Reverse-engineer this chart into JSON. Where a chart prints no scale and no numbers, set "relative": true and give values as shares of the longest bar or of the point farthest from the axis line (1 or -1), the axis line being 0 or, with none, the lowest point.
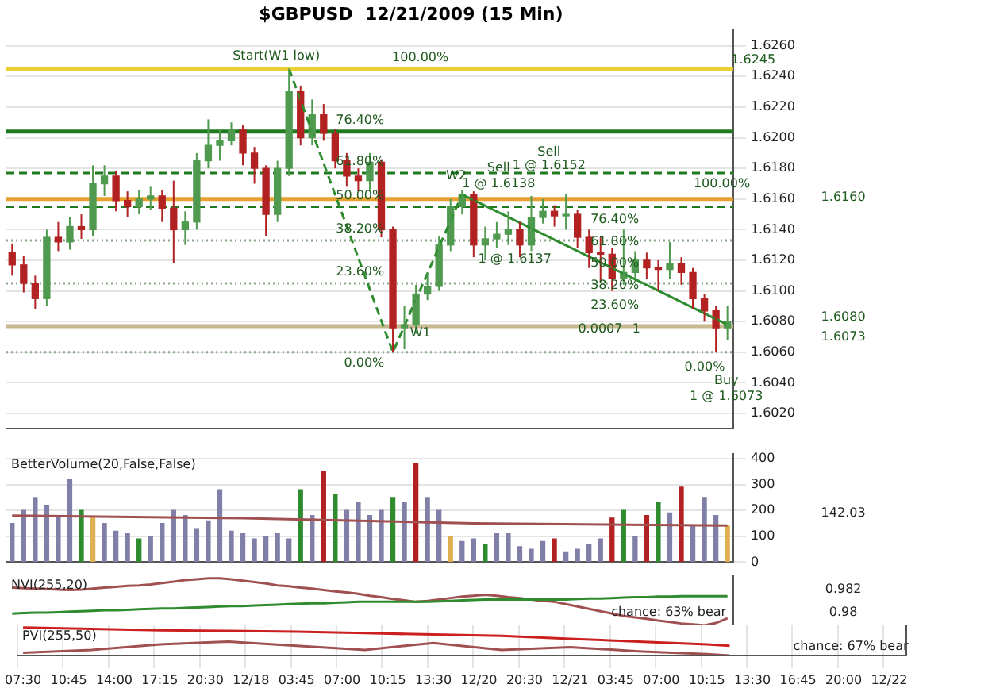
{
  "chart_data": [
    {
      "type": "candlestick",
      "title": "$GBPUSD  12/21/2009 (15 Min)",
      "categories": [
        null,
        null,
        null,
        null,
        null,
        null,
        null,
        null,
        null,
        null,
        null,
        null,
        null,
        null,
        null,
        null,
        null,
        null,
        null,
        null,
        null,
        null,
        null,
        null,
        null,
        null,
        null,
        null,
        null,
        null,
        null,
        null,
        null,
        null,
        null,
        null,
        null,
        null,
        null,
        null,
        null,
        null,
        null,
        null,
        null,
        null,
        null,
        null,
        null,
        null,
        null,
        null,
        null,
        null,
        null,
        null,
        null,
        null,
        null,
        null,
        null,
        null,
        null
      ],
      "ohlc": [
        [
          1.6125,
          1.6131,
          1.611,
          1.6117
        ],
        [
          1.6117,
          1.6123,
          1.6099,
          1.6105
        ],
        [
          1.6105,
          1.611,
          1.6088,
          1.6095
        ],
        [
          1.6095,
          1.614,
          1.609,
          1.6135
        ],
        [
          1.6135,
          1.6145,
          1.6126,
          1.6132
        ],
        [
          1.6132,
          1.6148,
          1.6127,
          1.6142
        ],
        [
          1.6142,
          1.615,
          1.6134,
          1.614
        ],
        [
          1.614,
          1.6182,
          1.6136,
          1.617
        ],
        [
          1.617,
          1.6182,
          1.6162,
          1.6175
        ],
        [
          1.6175,
          1.6178,
          1.6152,
          1.6159
        ],
        [
          1.6159,
          1.6165,
          1.6148,
          1.6155
        ],
        [
          1.6155,
          1.6166,
          1.615,
          1.616
        ],
        [
          1.616,
          1.6168,
          1.6153,
          1.6162
        ],
        [
          1.6162,
          1.6166,
          1.6145,
          1.6154
        ],
        [
          1.6154,
          1.6172,
          1.6118,
          1.614
        ],
        [
          1.614,
          1.6152,
          1.613,
          1.6145
        ],
        [
          1.6145,
          1.619,
          1.614,
          1.6185
        ],
        [
          1.6185,
          1.6212,
          1.618,
          1.6195
        ],
        [
          1.6195,
          1.6205,
          1.6185,
          1.6198
        ],
        [
          1.6198,
          1.621,
          1.6195,
          1.6205
        ],
        [
          1.6205,
          1.6208,
          1.6182,
          1.619
        ],
        [
          1.619,
          1.6194,
          1.617,
          1.618
        ],
        [
          1.618,
          1.6182,
          1.6136,
          1.615
        ],
        [
          1.615,
          1.6185,
          1.6145,
          1.618
        ],
        [
          1.618,
          1.6245,
          1.6175,
          1.623
        ],
        [
          1.623,
          1.6234,
          1.6195,
          1.62
        ],
        [
          1.62,
          1.6225,
          1.6195,
          1.6215
        ],
        [
          1.6215,
          1.6222,
          1.6198,
          1.6203
        ],
        [
          1.6203,
          1.6206,
          1.618,
          1.6185
        ],
        [
          1.6185,
          1.619,
          1.6168,
          1.6175
        ],
        [
          1.6175,
          1.618,
          1.6165,
          1.6172
        ],
        [
          1.6172,
          1.619,
          1.6166,
          1.6184
        ],
        [
          1.6184,
          1.6186,
          1.6135,
          1.614
        ],
        [
          1.614,
          1.6142,
          1.606,
          1.6076
        ],
        [
          1.6076,
          1.609,
          1.6062,
          1.6078
        ],
        [
          1.6078,
          1.6104,
          1.6072,
          1.6098
        ],
        [
          1.6098,
          1.6112,
          1.6094,
          1.6103
        ],
        [
          1.6103,
          1.6136,
          1.61,
          1.613
        ],
        [
          1.613,
          1.616,
          1.6126,
          1.6155
        ],
        [
          1.6155,
          1.6166,
          1.615,
          1.6163
        ],
        [
          1.6163,
          1.6165,
          1.6122,
          1.613
        ],
        [
          1.613,
          1.6142,
          1.612,
          1.6134
        ],
        [
          1.6134,
          1.6145,
          1.6128,
          1.6137
        ],
        [
          1.6137,
          1.6152,
          1.613,
          1.614
        ],
        [
          1.614,
          1.6145,
          1.6122,
          1.613
        ],
        [
          1.613,
          1.6162,
          1.6126,
          1.6148
        ],
        [
          1.6148,
          1.616,
          1.6144,
          1.6152
        ],
        [
          1.6152,
          1.6156,
          1.6142,
          1.6149
        ],
        [
          1.6149,
          1.6163,
          1.614,
          1.615
        ],
        [
          1.615,
          1.6153,
          1.6128,
          1.6135
        ],
        [
          1.6135,
          1.614,
          1.6115,
          1.6125
        ],
        [
          1.6125,
          1.6135,
          1.6106,
          1.6124
        ],
        [
          1.6124,
          1.6128,
          1.61,
          1.6108
        ],
        [
          1.6108,
          1.614,
          1.6104,
          1.6112
        ],
        [
          1.6112,
          1.6126,
          1.6108,
          1.612
        ],
        [
          1.612,
          1.6125,
          1.6108,
          1.6115
        ],
        [
          1.6115,
          1.612,
          1.61,
          1.6114
        ],
        [
          1.6114,
          1.6132,
          1.6108,
          1.6118
        ],
        [
          1.6118,
          1.6122,
          1.6104,
          1.6112
        ],
        [
          1.6112,
          1.6115,
          1.6088,
          1.6095
        ],
        [
          1.6095,
          1.6098,
          1.608,
          1.6087
        ],
        [
          1.6087,
          1.609,
          1.606,
          1.6076
        ],
        [
          1.6076,
          1.609,
          1.6068,
          1.608
        ]
      ],
      "series": [
        {
          "type": "line",
          "values": [
            null,
            null,
            null,
            null,
            null,
            null,
            null,
            null,
            null,
            null,
            null,
            null,
            null,
            null,
            null,
            null,
            null,
            null,
            null,
            null,
            null,
            null,
            null,
            null,
            null,
            null,
            null,
            null,
            null,
            null,
            null,
            null,
            null,
            null,
            null,
            null,
            null,
            null,
            null,
            1.6163,
            null,
            null,
            null,
            null,
            null,
            null,
            null,
            null,
            null,
            null,
            null,
            null,
            null,
            null,
            null,
            null,
            null,
            null,
            null,
            null,
            null,
            null,
            1.6078
          ],
          "color": "#2e8b2e",
          "line_style": "solid"
        },
        {
          "type": "line",
          "values": [
            null,
            null,
            null,
            null,
            null,
            null,
            null,
            null,
            null,
            null,
            null,
            null,
            null,
            null,
            null,
            null,
            null,
            null,
            null,
            null,
            null,
            null,
            null,
            null,
            1.6245,
            null,
            null,
            null,
            null,
            null,
            null,
            null,
            null,
            1.606,
            null,
            null,
            null,
            null,
            null,
            1.6163,
            null,
            null,
            null,
            null,
            null,
            null,
            null,
            null,
            null,
            null,
            null,
            null,
            null,
            null,
            null,
            null,
            null,
            null,
            null,
            null,
            null,
            null,
            null
          ],
          "color": "#2e8b2e",
          "line_style": "dashed"
        }
      ],
      "ylim": [
        1.601,
        1.627
      ],
      "yticks": [
        {
          "value": 1.602,
          "label": "1.6020"
        },
        {
          "value": 1.604,
          "label": "1.6040"
        },
        {
          "value": 1.606,
          "label": "1.6060"
        },
        {
          "value": 1.608,
          "label": "1.6080"
        },
        {
          "value": 1.61,
          "label": "1.6100"
        },
        {
          "value": 1.612,
          "label": "1.6120"
        },
        {
          "value": 1.614,
          "label": "1.6140"
        },
        {
          "value": 1.616,
          "label": "1.6160"
        },
        {
          "value": 1.618,
          "label": "1.6180"
        },
        {
          "value": 1.62,
          "label": "1.6200"
        },
        {
          "value": 1.622,
          "label": "1.6220"
        },
        {
          "value": 1.624,
          "label": "1.6240"
        },
        {
          "value": 1.626,
          "label": "1.6260"
        }
      ],
      "grid": "y",
      "tick_labels": "y",
      "ref_lines": [
        {
          "axis": "y",
          "value": 1.6245,
          "color": "#e8d030",
          "line_style": "solid"
        },
        {
          "axis": "y",
          "value": 1.6204,
          "color": "#1f7a1f",
          "line_style": "solid"
        },
        {
          "axis": "y",
          "value": 1.6177,
          "color": "#1f7a1f",
          "line_style": "dashed"
        },
        {
          "axis": "y",
          "value": 1.6155,
          "color": "#1f7a1f",
          "line_style": "dashed"
        },
        {
          "axis": "y",
          "value": 1.6133,
          "color": "#8aa88a",
          "line_style": "dotted"
        },
        {
          "axis": "y",
          "value": 1.6105,
          "color": "#8aa88a",
          "line_style": "dotted"
        },
        {
          "axis": "y",
          "value": 1.606,
          "color": "#8aa88a",
          "line_style": "dotted"
        },
        {
          "axis": "y",
          "value": 1.616,
          "color": "#e8a030",
          "line_style": "solid"
        },
        {
          "axis": "y",
          "value": 1.6077,
          "color": "#c8b890",
          "line_style": "solid"
        }
      ],
      "annotations": [
        {
          "text": "Start(W1 low)",
          "y": 1.6245
        },
        {
          "text": "100.00%",
          "y": 1.6245
        },
        {
          "text": "76.40%",
          "y": 1.6204
        },
        {
          "text": "61.80%",
          "y": 1.6177
        },
        {
          "text": "50.00%",
          "y": 1.6155
        },
        {
          "text": "38.20%",
          "y": 1.6133
        },
        {
          "text": "23.60%",
          "y": 1.6105
        },
        {
          "text": "0.00%",
          "y": 1.606
        },
        "W1",
        "W2",
        "Sell",
        "1 @ 1.6138",
        "Sell",
        "1 @ 1.6152",
        "1 @ 1.6137",
        "100.00%",
        "76.40%",
        "61.80%",
        "50.00%",
        "38.20%",
        "23.60%",
        "0.00%",
        "0.0007",
        "1",
        "Buy",
        "1 @ 1.6073",
        "1.6245",
        "1.6160",
        "1.6080",
        "1.6073"
      ]
    },
    {
      "type": "bar",
      "title": "BetterVolume(20,False,False)",
      "categories": [
        null,
        null,
        null,
        null,
        null,
        null,
        null,
        null,
        null,
        null,
        null,
        null,
        null,
        null,
        null,
        null,
        null,
        null,
        null,
        null,
        null,
        null,
        null,
        null,
        null,
        null,
        null,
        null,
        null,
        null,
        null,
        null,
        null,
        null,
        null,
        null,
        null,
        null,
        null,
        null,
        null,
        null,
        null,
        null,
        null,
        null,
        null,
        null,
        null,
        null,
        null,
        null,
        null,
        null,
        null,
        null,
        null,
        null,
        null,
        null,
        null,
        null,
        null
      ],
      "values": [
        150,
        200,
        250,
        220,
        180,
        320,
        200,
        170,
        150,
        120,
        110,
        90,
        100,
        150,
        200,
        180,
        130,
        160,
        280,
        120,
        110,
        90,
        100,
        110,
        90,
        280,
        180,
        350,
        260,
        200,
        230,
        180,
        200,
        250,
        230,
        380,
        250,
        200,
        100,
        80,
        90,
        70,
        110,
        110,
        60,
        50,
        80,
        90,
        40,
        50,
        70,
        90,
        170,
        200,
        100,
        180,
        230,
        190,
        290,
        140,
        250,
        180,
        140
      ],
      "colors": [
        "#7f7fa8",
        "#7f7fa8",
        "#7f7fa8",
        "#7f7fa8",
        "#7f7fa8",
        "#7f7fa8",
        "#2e8b2e",
        "#e0b050",
        "#7f7fa8",
        "#7f7fa8",
        "#7f7fa8",
        "#2e8b2e",
        "#7f7fa8",
        "#7f7fa8",
        "#7f7fa8",
        "#7f7fa8",
        "#7f7fa8",
        "#7f7fa8",
        "#7f7fa8",
        "#7f7fa8",
        "#7f7fa8",
        "#7f7fa8",
        "#7f7fa8",
        "#7f7fa8",
        "#7f7fa8",
        "#2e8b2e",
        "#7f7fa8",
        "#b22222",
        "#2e8b2e",
        "#7f7fa8",
        "#7f7fa8",
        "#7f7fa8",
        "#7f7fa8",
        "#2e8b2e",
        "#7f7fa8",
        "#b22222",
        "#7f7fa8",
        "#7f7fa8",
        "#e0b050",
        "#7f7fa8",
        "#7f7fa8",
        "#2e8b2e",
        "#7f7fa8",
        "#7f7fa8",
        "#7f7fa8",
        "#7f7fa8",
        "#7f7fa8",
        "#b22222",
        "#7f7fa8",
        "#7f7fa8",
        "#7f7fa8",
        "#7f7fa8",
        "#b22222",
        "#2e8b2e",
        "#7f7fa8",
        "#b22222",
        "#2e8b2e",
        "#7f7fa8",
        "#b22222",
        "#7f7fa8",
        "#7f7fa8",
        "#7f7fa8",
        "#e0b050"
      ],
      "series": [
        {
          "type": "line",
          "values": [
            180,
            null,
            null,
            null,
            null,
            null,
            null,
            null,
            null,
            null,
            null,
            null,
            null,
            null,
            null,
            null,
            null,
            null,
            null,
            null,
            170,
            null,
            null,
            null,
            null,
            null,
            null,
            null,
            null,
            null,
            null,
            null,
            null,
            null,
            null,
            null,
            null,
            null,
            null,
            null,
            150,
            null,
            null,
            null,
            null,
            null,
            null,
            null,
            null,
            null,
            null,
            null,
            null,
            null,
            null,
            null,
            null,
            null,
            null,
            null,
            null,
            null,
            142
          ],
          "color": "#a05050",
          "line_style": "solid"
        }
      ],
      "ylim": [
        0,
        420
      ],
      "yticks": [
        0,
        100,
        200,
        300,
        400
      ],
      "grid": "y",
      "tick_labels": "y",
      "annotations": [
        "142.03"
      ]
    },
    {
      "type": "line",
      "title": "NVI(255,20)",
      "relative": true,
      "tick_labels": false,
      "categories": [
        null,
        null,
        null,
        null,
        null,
        null,
        null,
        null,
        null,
        null,
        null,
        null,
        null,
        null,
        null,
        null,
        null,
        null,
        null,
        null,
        null,
        null,
        null,
        null,
        null,
        null,
        null,
        null,
        null,
        null,
        null,
        null,
        null,
        null,
        null,
        null,
        null,
        null,
        null,
        null,
        null,
        null,
        null,
        null,
        null,
        null,
        null,
        null,
        null,
        null,
        null,
        null,
        null,
        null,
        null,
        null,
        null,
        null,
        null,
        null,
        null,
        null,
        null
      ],
      "series": [
        {
          "type": "line",
          "values": [
            0.8,
            0.79,
            0.78,
            0.77,
            0.76,
            0.75,
            0.76,
            0.78,
            0.8,
            0.82,
            0.84,
            0.85,
            0.87,
            0.9,
            0.93,
            0.96,
            0.98,
            1.0,
            1.0,
            0.98,
            0.95,
            0.92,
            0.89,
            0.85,
            0.83,
            0.8,
            0.78,
            0.75,
            0.72,
            0.7,
            0.67,
            0.63,
            0.6,
            0.56,
            0.53,
            0.5,
            0.52,
            0.55,
            0.58,
            0.61,
            0.63,
            0.65,
            0.63,
            0.6,
            0.58,
            0.55,
            0.52,
            0.5,
            0.45,
            0.4,
            0.35,
            0.3,
            0.25,
            0.2,
            0.17,
            0.14,
            0.1,
            0.07,
            0.04,
            0.02,
            0,
            0.05,
            0.15
          ],
          "color": "#a05050"
        },
        {
          "type": "line",
          "values": [
            0.25,
            0.26,
            0.27,
            0.27,
            0.28,
            0.29,
            0.3,
            0.31,
            0.32,
            0.32,
            0.33,
            0.34,
            0.35,
            0.36,
            0.36,
            0.37,
            0.38,
            0.39,
            0.4,
            0.41,
            0.41,
            0.42,
            0.43,
            0.44,
            0.45,
            0.46,
            0.47,
            0.47,
            0.48,
            0.49,
            0.5,
            0.5,
            0.5,
            0.5,
            0.5,
            0.5,
            0.5,
            0.51,
            0.52,
            0.53,
            0.54,
            0.55,
            0.55,
            0.55,
            0.55,
            0.55,
            0.55,
            0.55,
            0.55,
            0.56,
            0.57,
            0.57,
            0.58,
            0.59,
            0.6,
            0.6,
            0.61,
            0.61,
            0.62,
            0.62,
            0.62,
            0.62,
            0.62
          ],
          "color": "#2e8b2e"
        }
      ],
      "annotations": [
        "chance: 63% bear",
        "0.982",
        "0.98"
      ]
    },
    {
      "type": "line",
      "title": "PVI(255,50)",
      "relative": true,
      "grid": "x",
      "tick_labels": "x",
      "categories": [
        "07:30",
        null,
        null,
        null,
        "10:45",
        null,
        null,
        null,
        "14:00",
        null,
        null,
        null,
        "17:15",
        null,
        null,
        null,
        "20:30",
        null,
        null,
        null,
        "12/18",
        null,
        null,
        null,
        "03:45",
        null,
        null,
        null,
        "07:00",
        null,
        null,
        null,
        "10:15",
        null,
        null,
        null,
        "13:30",
        null,
        null,
        null,
        "12/20",
        null,
        null,
        null,
        "20:30",
        null,
        null,
        null,
        "12/21",
        null,
        null,
        null,
        "03:45",
        null,
        null,
        null,
        "07:00",
        null,
        null,
        null,
        "10:15",
        null,
        null,
        null,
        "13:30",
        null,
        null,
        null,
        "16:45",
        null,
        null,
        null,
        "20:00",
        null,
        null,
        null,
        "12/22",
        null
      ],
      "series": [
        {
          "type": "line",
          "values": [
            1.0,
            null,
            null,
            null,
            null,
            null,
            0.95,
            null,
            null,
            null,
            null,
            null,
            0.9,
            null,
            null,
            null,
            null,
            null,
            0.88,
            null,
            null,
            null,
            null,
            null,
            0.85,
            null,
            null,
            null,
            null,
            null,
            0.8,
            null,
            null,
            null,
            null,
            null,
            0.75,
            null,
            null,
            null,
            null,
            null,
            0.7,
            null,
            null,
            null,
            null,
            null,
            0.6,
            null,
            null,
            null,
            null,
            null,
            0.5,
            null,
            null,
            null,
            null,
            null,
            0.4,
            null,
            0.35,
            null,
            null,
            null,
            null,
            null,
            null,
            null,
            null,
            null,
            null,
            null,
            null,
            null,
            null,
            null
          ],
          "color": "#cc2020"
        },
        {
          "type": "line",
          "values": [
            0.1,
            null,
            null,
            null,
            null,
            null,
            0.2,
            null,
            null,
            null,
            null,
            null,
            0.4,
            null,
            null,
            null,
            null,
            null,
            0.5,
            null,
            null,
            null,
            null,
            null,
            0.35,
            null,
            null,
            null,
            null,
            null,
            0.2,
            null,
            null,
            null,
            null,
            null,
            0.45,
            null,
            null,
            null,
            null,
            null,
            0.2,
            null,
            null,
            null,
            null,
            null,
            0.3,
            null,
            null,
            null,
            null,
            null,
            0.15,
            null,
            null,
            null,
            null,
            null,
            0.05,
            null,
            0,
            null,
            null,
            null,
            null,
            null,
            null,
            null,
            null,
            null,
            null,
            null,
            null,
            null,
            null,
            null
          ],
          "color": "#a05050"
        }
      ],
      "annotations": [
        "chance: 67% bear"
      ]
    }
  ]
}
